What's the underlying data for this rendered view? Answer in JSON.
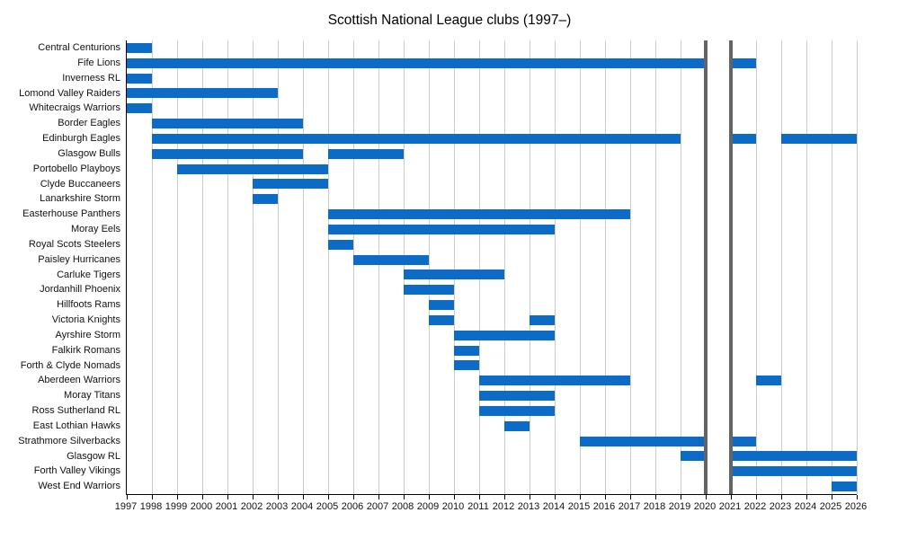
{
  "colors": {
    "bar": "#0d6bc8",
    "grid": "#cccccc",
    "axis": "#000000",
    "event_line": "#646464",
    "background": "#ffffff"
  },
  "chart_data": {
    "type": "gantt",
    "title": "Scottish National League clubs (1997–)",
    "x_axis": {
      "min": 1997,
      "max": 2026,
      "tick_labels": [
        "1997",
        "1998",
        "1999",
        "2000",
        "2001",
        "2002",
        "2003",
        "2004",
        "2005",
        "2006",
        "2007",
        "2008",
        "2009",
        "2010",
        "2011",
        "2012",
        "2013",
        "2014",
        "2015",
        "2016",
        "2017",
        "2018",
        "2019",
        "2020",
        "2021",
        "2022",
        "2023",
        "2024",
        "2025",
        "2026"
      ]
    },
    "event_line_years": [
      2020,
      2021
    ],
    "grid": "vertical-yearly",
    "legend": "none",
    "clubs": [
      {
        "name": "Central Centurions",
        "periods": [
          [
            1997,
            1998
          ]
        ]
      },
      {
        "name": "Fife Lions",
        "periods": [
          [
            1997,
            2020
          ],
          [
            2021,
            2022
          ]
        ]
      },
      {
        "name": "Inverness RL",
        "periods": [
          [
            1997,
            1998
          ]
        ]
      },
      {
        "name": "Lomond Valley Raiders",
        "periods": [
          [
            1997,
            2003
          ]
        ]
      },
      {
        "name": "Whitecraigs Warriors",
        "periods": [
          [
            1997,
            1998
          ]
        ]
      },
      {
        "name": "Border Eagles",
        "periods": [
          [
            1998,
            2004
          ]
        ]
      },
      {
        "name": "Edinburgh Eagles",
        "periods": [
          [
            1998,
            2019
          ],
          [
            2021,
            2022
          ],
          [
            2023,
            2026
          ]
        ]
      },
      {
        "name": "Glasgow Bulls",
        "periods": [
          [
            1998,
            2004
          ],
          [
            2005,
            2008
          ]
        ]
      },
      {
        "name": "Portobello Playboys",
        "periods": [
          [
            1999,
            2005
          ]
        ]
      },
      {
        "name": "Clyde Buccaneers",
        "periods": [
          [
            2002,
            2005
          ]
        ]
      },
      {
        "name": "Lanarkshire Storm",
        "periods": [
          [
            2002,
            2003
          ]
        ]
      },
      {
        "name": "Easterhouse Panthers",
        "periods": [
          [
            2005,
            2017
          ]
        ]
      },
      {
        "name": "Moray Eels",
        "periods": [
          [
            2005,
            2014
          ]
        ]
      },
      {
        "name": "Royal Scots Steelers",
        "periods": [
          [
            2005,
            2006
          ]
        ]
      },
      {
        "name": "Paisley Hurricanes",
        "periods": [
          [
            2006,
            2009
          ]
        ]
      },
      {
        "name": "Carluke Tigers",
        "periods": [
          [
            2008,
            2012
          ]
        ]
      },
      {
        "name": "Jordanhill Phoenix",
        "periods": [
          [
            2008,
            2010
          ]
        ]
      },
      {
        "name": "Hillfoots Rams",
        "periods": [
          [
            2009,
            2010
          ]
        ]
      },
      {
        "name": "Victoria Knights",
        "periods": [
          [
            2009,
            2010
          ],
          [
            2013,
            2014
          ]
        ]
      },
      {
        "name": "Ayrshire Storm",
        "periods": [
          [
            2010,
            2014
          ]
        ]
      },
      {
        "name": "Falkirk Romans",
        "periods": [
          [
            2010,
            2011
          ]
        ]
      },
      {
        "name": "Forth & Clyde Nomads",
        "periods": [
          [
            2010,
            2011
          ]
        ]
      },
      {
        "name": "Aberdeen Warriors",
        "periods": [
          [
            2011,
            2017
          ],
          [
            2022,
            2023
          ]
        ]
      },
      {
        "name": "Moray Titans",
        "periods": [
          [
            2011,
            2014
          ]
        ]
      },
      {
        "name": "Ross Sutherland RL",
        "periods": [
          [
            2011,
            2014
          ]
        ]
      },
      {
        "name": "East Lothian Hawks",
        "periods": [
          [
            2012,
            2013
          ]
        ]
      },
      {
        "name": "Strathmore Silverbacks",
        "periods": [
          [
            2015,
            2020
          ],
          [
            2021,
            2022
          ]
        ]
      },
      {
        "name": "Glasgow RL",
        "periods": [
          [
            2019,
            2020
          ],
          [
            2021,
            2026
          ]
        ]
      },
      {
        "name": "Forth Valley Vikings",
        "periods": [
          [
            2021,
            2026
          ]
        ]
      },
      {
        "name": "West End Warriors",
        "periods": [
          [
            2025,
            2026
          ]
        ]
      }
    ]
  }
}
